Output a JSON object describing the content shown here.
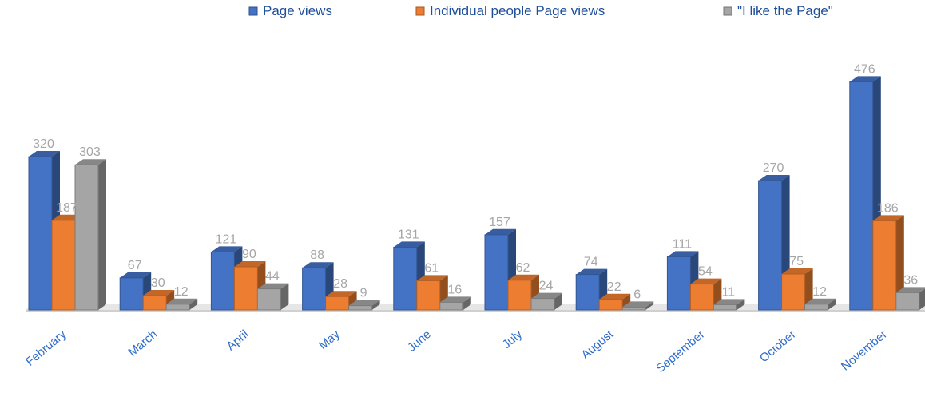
{
  "chart_data": {
    "type": "bar",
    "categories": [
      "February",
      "March",
      "April",
      "May",
      "June",
      "July",
      "August",
      "September",
      "October",
      "November"
    ],
    "series": [
      {
        "name": "Page views",
        "values": [
          320,
          67,
          121,
          88,
          131,
          157,
          74,
          111,
          270,
          476
        ],
        "color": "#4472c4"
      },
      {
        "name": "Individual people Page views",
        "values": [
          187,
          30,
          90,
          28,
          61,
          62,
          22,
          54,
          75,
          186
        ],
        "color": "#ed7d31"
      },
      {
        "name": "\"I like the Page\"",
        "values": [
          303,
          12,
          44,
          9,
          16,
          24,
          6,
          11,
          12,
          36
        ],
        "color": "#a5a5a5"
      }
    ],
    "legend_position": "top",
    "value_labels": true,
    "grid": false
  }
}
